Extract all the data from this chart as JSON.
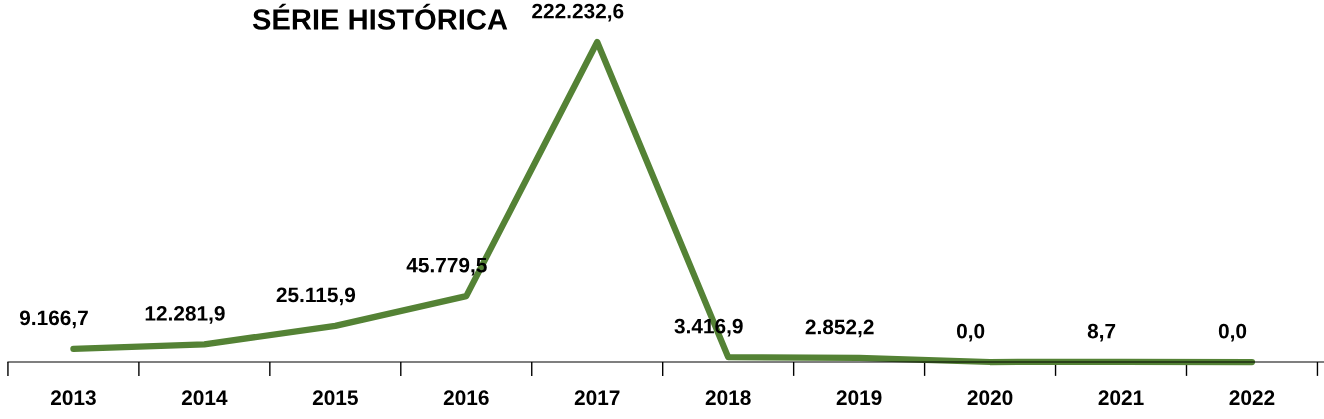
{
  "chart_data": {
    "type": "line",
    "title": "SÉRIE HISTÓRICA",
    "categories": [
      "2013",
      "2014",
      "2015",
      "2016",
      "2017",
      "2018",
      "2019",
      "2020",
      "2021",
      "2022"
    ],
    "series": [
      {
        "color": "#548235",
        "values": [
          9166.7,
          12281.9,
          25115.9,
          45779.5,
          222232.6,
          3416.9,
          2852.2,
          0.0,
          8.7,
          0.0
        ],
        "value_labels": [
          "9.166,7",
          "12.281,9",
          "25.115,9",
          "45.779,5",
          "222.232,6",
          "3.416,9",
          "2.852,2",
          "0,0",
          "8,7",
          "0,0"
        ]
      }
    ],
    "grid": false,
    "legend": false,
    "marker": "none",
    "line_style": "solid"
  }
}
